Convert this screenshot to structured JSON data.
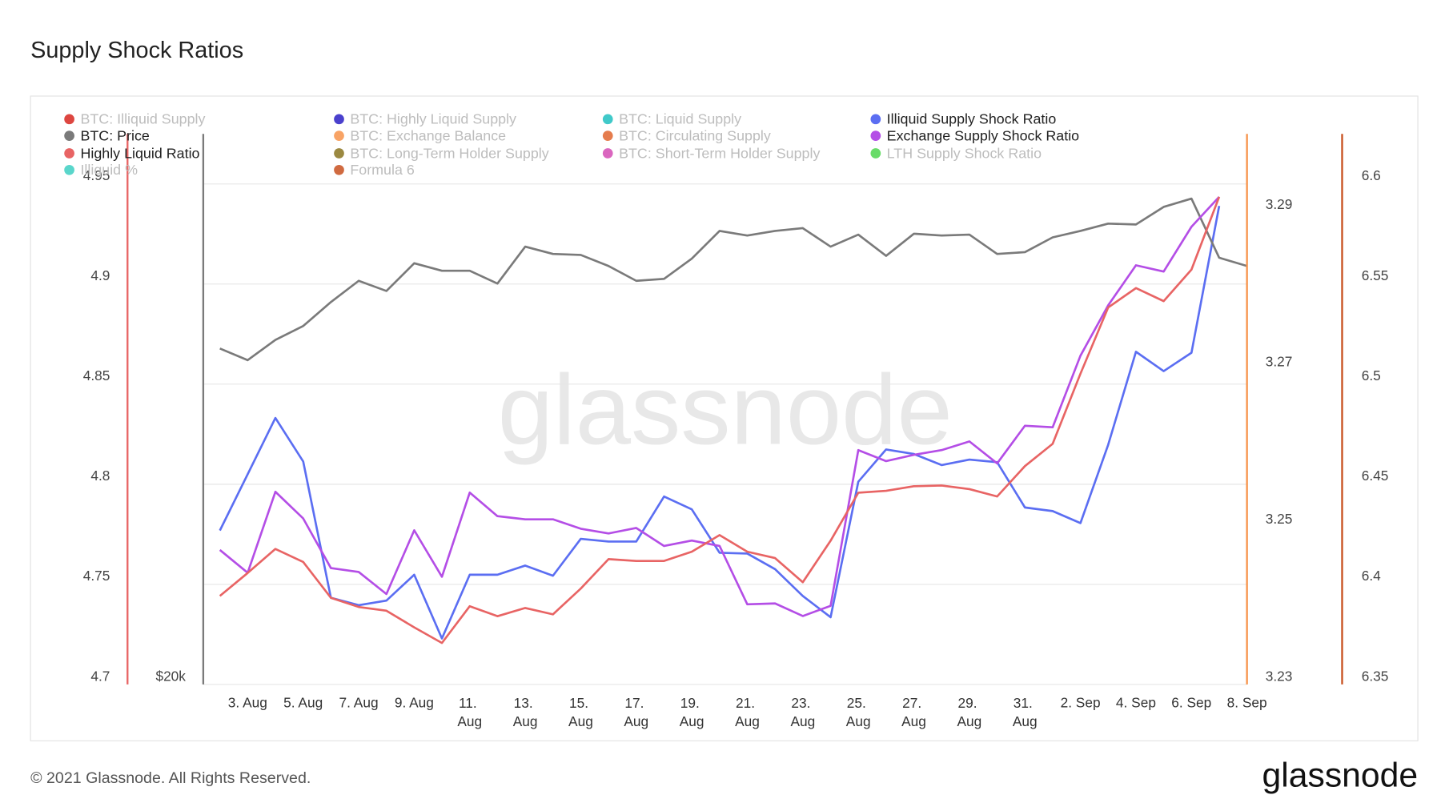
{
  "chart_data": {
    "type": "line",
    "title": "Supply Shock Ratios",
    "watermark": "glassnode",
    "grid": true,
    "categories": [
      "2. Aug",
      "3. Aug",
      "4. Aug",
      "5. Aug",
      "6. Aug",
      "7. Aug",
      "8. Aug",
      "9. Aug",
      "10. Aug",
      "11. Aug",
      "12. Aug",
      "13. Aug",
      "14. Aug",
      "15. Aug",
      "16. Aug",
      "17. Aug",
      "18. Aug",
      "19. Aug",
      "20. Aug",
      "21. Aug",
      "22. Aug",
      "23. Aug",
      "24. Aug",
      "25. Aug",
      "26. Aug",
      "27. Aug",
      "28. Aug",
      "29. Aug",
      "30. Aug",
      "31. Aug",
      "1. Sep",
      "2. Sep",
      "3. Sep",
      "4. Sep",
      "5. Sep",
      "6. Sep",
      "7. Sep",
      "8. Sep"
    ],
    "xticks": [
      "3. Aug",
      "5. Aug",
      "7. Aug",
      "9. Aug",
      "11. Aug",
      "13. Aug",
      "15. Aug",
      "17. Aug",
      "19. Aug",
      "21. Aug",
      "23. Aug",
      "25. Aug",
      "27. Aug",
      "29. Aug",
      "31. Aug",
      "2. Sep",
      "4. Sep",
      "6. Sep",
      "8. Sep"
    ],
    "axes": [
      {
        "id": "y",
        "color": "#e86464",
        "lim": [
          4.7,
          4.975
        ],
        "ticks": [
          4.7,
          4.75,
          4.8,
          4.85,
          4.9,
          4.95
        ]
      },
      {
        "id": "y2",
        "color": "#7a7a7a",
        "log": true,
        "lim": [
          20000,
          60000
        ],
        "ticks": [
          {
            "value": 20000,
            "label": "$20k"
          }
        ]
      },
      {
        "id": "y3",
        "color": "#f7934a",
        "lim": [
          3.23,
          3.3
        ],
        "ticks": [
          3.23,
          3.25,
          3.27,
          3.29
        ]
      },
      {
        "id": "y4",
        "color": "#c8501e",
        "lim": [
          6.35,
          6.625
        ],
        "ticks": [
          6.35,
          6.4,
          6.45,
          6.5,
          6.55,
          6.6
        ]
      }
    ],
    "series": [
      {
        "name": "BTC: Illiquid Supply",
        "color": "#d7261e",
        "visible": false
      },
      {
        "name": "BTC: Highly Liquid Supply",
        "color": "#2a1fc4",
        "visible": false
      },
      {
        "name": "BTC: Liquid Supply",
        "color": "#1fbfbf",
        "visible": false
      },
      {
        "name": "Illiquid Supply Shock Ratio",
        "color": "#5b6ef2",
        "visible": true,
        "axis": "y4",
        "values": [
          6.4269,
          6.455,
          6.4831,
          6.4614,
          6.3933,
          6.3896,
          6.3919,
          6.4048,
          6.373,
          6.4048,
          6.4048,
          6.4094,
          6.4043,
          6.4227,
          6.4214,
          6.4214,
          6.4439,
          6.4375,
          6.4158,
          6.4154,
          6.4076,
          6.3942,
          6.3836,
          6.4513,
          6.4674,
          6.4651,
          6.4596,
          6.4623,
          6.461,
          6.4384,
          6.4366,
          6.4306,
          6.4697,
          6.5162,
          6.5065,
          6.5157,
          6.589,
          null
        ]
      },
      {
        "name": "BTC: Price",
        "color": "#7a7a7a",
        "visible": true,
        "axis": "y2",
        "values": [
          39100,
          38200,
          39780,
          40900,
          42900,
          44760,
          43860,
          46350,
          45670,
          45670,
          44510,
          47920,
          47220,
          47130,
          46100,
          44760,
          44930,
          46780,
          49440,
          48990,
          49440,
          49720,
          47920,
          49080,
          47040,
          49170,
          48990,
          49080,
          47220,
          47390,
          48810,
          49440,
          50170,
          50080,
          51870,
          52740,
          46870,
          46100
        ]
      },
      {
        "name": "BTC: Exchange Balance",
        "color": "#f7934a",
        "visible": false
      },
      {
        "name": "BTC: Circulating Supply",
        "color": "#e0652e",
        "visible": false
      },
      {
        "name": "Exchange Supply Shock Ratio",
        "color": "#b44ee6",
        "visible": true,
        "axis": "y3",
        "values": [
          3.2471,
          3.2442,
          3.2545,
          3.2511,
          3.2448,
          3.2443,
          3.2415,
          3.2496,
          3.2437,
          3.2544,
          3.2514,
          3.251,
          3.251,
          3.2498,
          3.2492,
          3.2499,
          3.2476,
          3.2483,
          3.2476,
          3.2402,
          3.2403,
          3.2387,
          3.24,
          3.2598,
          3.2584,
          3.2592,
          3.2598,
          3.2609,
          3.2581,
          3.2629,
          3.2627,
          3.2718,
          3.2782,
          3.2833,
          3.2825,
          3.2882,
          3.292,
          null
        ]
      },
      {
        "name": "Highly Liquid Ratio",
        "color": "#e86464",
        "visible": true,
        "axis": "y",
        "values": [
          4.7442,
          4.7557,
          4.7677,
          4.7612,
          4.7433,
          4.7387,
          4.7368,
          4.7285,
          4.7207,
          4.7391,
          4.7341,
          4.7382,
          4.735,
          4.7479,
          4.7626,
          4.7617,
          4.7617,
          4.7663,
          4.7746,
          4.7663,
          4.7631,
          4.7511,
          4.7718,
          4.7958,
          4.7967,
          4.799,
          4.7994,
          4.7976,
          4.7939,
          4.8091,
          4.8202,
          4.8552,
          4.8883,
          4.898,
          4.8915,
          4.9072,
          4.9436,
          null
        ]
      },
      {
        "name": "BTC: Long-Term Holder Supply",
        "color": "#8a7420",
        "visible": false
      },
      {
        "name": "BTC: Short-Term Holder Supply",
        "color": "#d44bb4",
        "visible": false
      },
      {
        "name": "LTH Supply Shock Ratio",
        "color": "#4fd64f",
        "visible": false
      },
      {
        "name": "Illiquid %",
        "color": "#3dcfc2",
        "visible": false
      },
      {
        "name": "Formula 6",
        "color": "#c8501e",
        "visible": false
      }
    ]
  },
  "footer": {
    "copyright": "© 2021 Glassnode. All Rights Reserved.",
    "logo": "glassnode"
  }
}
